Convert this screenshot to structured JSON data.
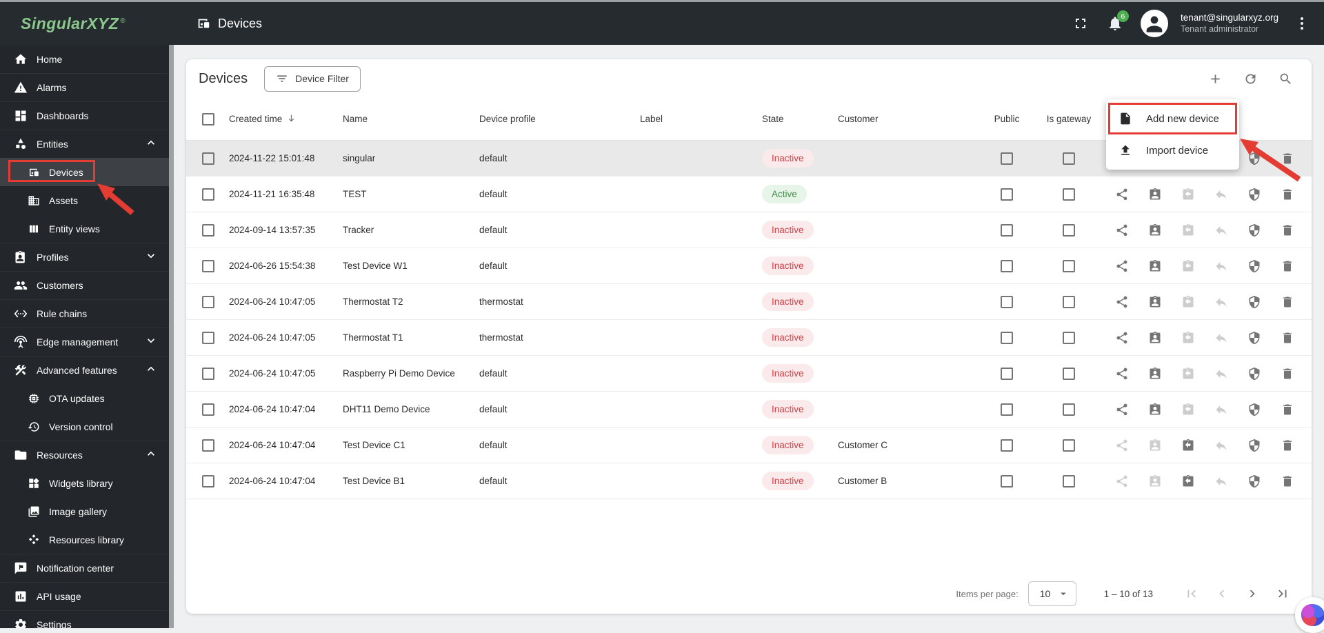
{
  "topbar": {
    "logo": "SingularXYZ",
    "logo_mark": "®",
    "page_title": "Devices",
    "page_title_icon": "devices-icon",
    "fullscreen_icon": "fullscreen-icon",
    "notifications_icon": "bell-icon",
    "notification_count": "6",
    "user_email": "tenant@singularxyz.org",
    "user_role": "Tenant administrator",
    "more_menu_icon": "kebab-menu-icon"
  },
  "sidebar": {
    "items": [
      {
        "label": "Home",
        "icon": "home-icon",
        "level": 0
      },
      {
        "label": "Alarms",
        "icon": "alarm-icon",
        "level": 0
      },
      {
        "label": "Dashboards",
        "icon": "dashboards-icon",
        "level": 0
      },
      {
        "label": "Entities",
        "icon": "entities-icon",
        "level": 0,
        "chevron": "up"
      },
      {
        "label": "Devices",
        "icon": "devices-icon",
        "level": 1,
        "active": true,
        "annotated": true
      },
      {
        "label": "Assets",
        "icon": "assets-icon",
        "level": 1
      },
      {
        "label": "Entity views",
        "icon": "entity-views-icon",
        "level": 1
      },
      {
        "label": "Profiles",
        "icon": "profiles-icon",
        "level": 0,
        "chevron": "down"
      },
      {
        "label": "Customers",
        "icon": "customers-icon",
        "level": 0
      },
      {
        "label": "Rule chains",
        "icon": "rule-chains-icon",
        "level": 0
      },
      {
        "label": "Edge management",
        "icon": "edge-management-icon",
        "level": 0,
        "chevron": "down"
      },
      {
        "label": "Advanced features",
        "icon": "advanced-features-icon",
        "level": 0,
        "chevron": "up"
      },
      {
        "label": "OTA updates",
        "icon": "ota-updates-icon",
        "level": 1
      },
      {
        "label": "Version control",
        "icon": "version-control-icon",
        "level": 1
      },
      {
        "label": "Resources",
        "icon": "resources-icon",
        "level": 0,
        "chevron": "up"
      },
      {
        "label": "Widgets library",
        "icon": "widgets-library-icon",
        "level": 1
      },
      {
        "label": "Image gallery",
        "icon": "image-gallery-icon",
        "level": 1
      },
      {
        "label": "Resources library",
        "icon": "resources-library-icon",
        "level": 1
      },
      {
        "label": "Notification center",
        "icon": "notification-center-icon",
        "level": 0
      },
      {
        "label": "API usage",
        "icon": "api-usage-icon",
        "level": 0
      },
      {
        "label": "Settings",
        "icon": "settings-icon",
        "level": 0
      }
    ]
  },
  "card": {
    "title": "Devices",
    "filter_button_label": "Device Filter",
    "filter_button_icon": "filter-icon",
    "header_icons": [
      "add-icon",
      "refresh-icon",
      "search-icon"
    ],
    "columns": [
      "Created time",
      "Name",
      "Device profile",
      "Label",
      "State",
      "Customer",
      "Public",
      "Is gateway"
    ],
    "sort_icon": "arrow-down-icon",
    "row_action_icons": [
      "share-icon",
      "assign-customer-icon",
      "unassign-customer-icon",
      "make-private-icon",
      "credentials-shield-icon",
      "delete-icon"
    ],
    "rows": [
      {
        "created": "2024-11-22 15:01:48",
        "name": "singular",
        "profile": "default",
        "label": "",
        "state": "Inactive",
        "customer": "",
        "assigned": false,
        "highlighted": true
      },
      {
        "created": "2024-11-21 16:35:48",
        "name": "TEST",
        "profile": "default",
        "label": "",
        "state": "Active",
        "customer": "",
        "assigned": false
      },
      {
        "created": "2024-09-14 13:57:35",
        "name": "Tracker",
        "profile": "default",
        "label": "",
        "state": "Inactive",
        "customer": "",
        "assigned": false
      },
      {
        "created": "2024-06-26 15:54:38",
        "name": "Test Device W1",
        "profile": "default",
        "label": "",
        "state": "Inactive",
        "customer": "",
        "assigned": false
      },
      {
        "created": "2024-06-24 10:47:05",
        "name": "Thermostat T2",
        "profile": "thermostat",
        "label": "",
        "state": "Inactive",
        "customer": "",
        "assigned": false
      },
      {
        "created": "2024-06-24 10:47:05",
        "name": "Thermostat T1",
        "profile": "thermostat",
        "label": "",
        "state": "Inactive",
        "customer": "",
        "assigned": false
      },
      {
        "created": "2024-06-24 10:47:05",
        "name": "Raspberry Pi Demo Device",
        "profile": "default",
        "label": "",
        "state": "Inactive",
        "customer": "",
        "assigned": false
      },
      {
        "created": "2024-06-24 10:47:04",
        "name": "DHT11 Demo Device",
        "profile": "default",
        "label": "",
        "state": "Inactive",
        "customer": "",
        "assigned": false
      },
      {
        "created": "2024-06-24 10:47:04",
        "name": "Test Device C1",
        "profile": "default",
        "label": "",
        "state": "Inactive",
        "customer": "Customer C",
        "assigned": true
      },
      {
        "created": "2024-06-24 10:47:04",
        "name": "Test Device B1",
        "profile": "default",
        "label": "",
        "state": "Inactive",
        "customer": "Customer B",
        "assigned": true
      }
    ],
    "pagination": {
      "items_per_page_label": "Items per page:",
      "page_size": "10",
      "range": "1 – 10 of 13",
      "nav_icons": [
        "first-page-icon",
        "prev-page-icon",
        "next-page-icon",
        "last-page-icon"
      ]
    }
  },
  "dropdown_menu": {
    "items": [
      {
        "label": "Add new device",
        "icon": "file-icon",
        "highlighted": true
      },
      {
        "label": "Import device",
        "icon": "upload-icon"
      }
    ]
  },
  "colors": {
    "topbar_bg": "#262b2f",
    "sidebar_bg": "#23262a",
    "sidebar_active_bg": "#3d4145",
    "logo_green": "#8bc88b",
    "annotation_red": "#e43b32",
    "badge_inactive_bg": "#faeaec",
    "badge_inactive_text": "#cf4044",
    "badge_active_bg": "#e7f4e8",
    "badge_active_text": "#418a46",
    "notification_badge_green": "#4caf50"
  }
}
